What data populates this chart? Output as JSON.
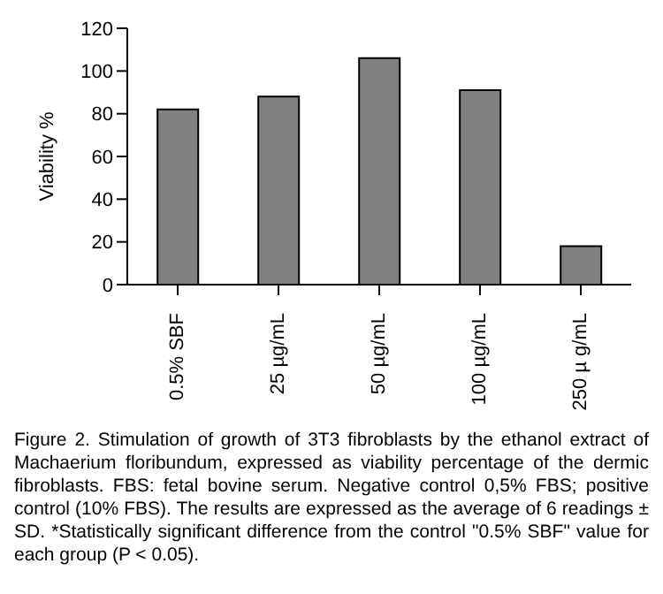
{
  "chart_data": {
    "type": "bar",
    "ylabel": "Viability %",
    "categories": [
      "0.5% SBF",
      "25 µg/mL",
      "50 µg/mL",
      "100 µg/mL",
      "250 µ g/mL"
    ],
    "values": [
      82,
      88,
      106,
      91,
      18
    ],
    "color": "#808080",
    "ylim": [
      0,
      120
    ],
    "yticks": [
      0,
      20,
      40,
      60,
      80,
      100,
      120
    ],
    "grid": false,
    "legend": false,
    "annotations": [
      "Figure 2. Stimulation of growth of 3T3 fibroblasts by the ethanol extract of Machaerium floribundum, expressed as viability percentage of the dermic fibroblasts. FBS: fetal bovine serum. Negative control 0,5% FBS; positive control (10% FBS). The results are expressed as the average of 6 readings ± SD. *Statistically significant difference from the control \"0.5% SBF\" value for each group (P < 0.05)."
    ]
  }
}
